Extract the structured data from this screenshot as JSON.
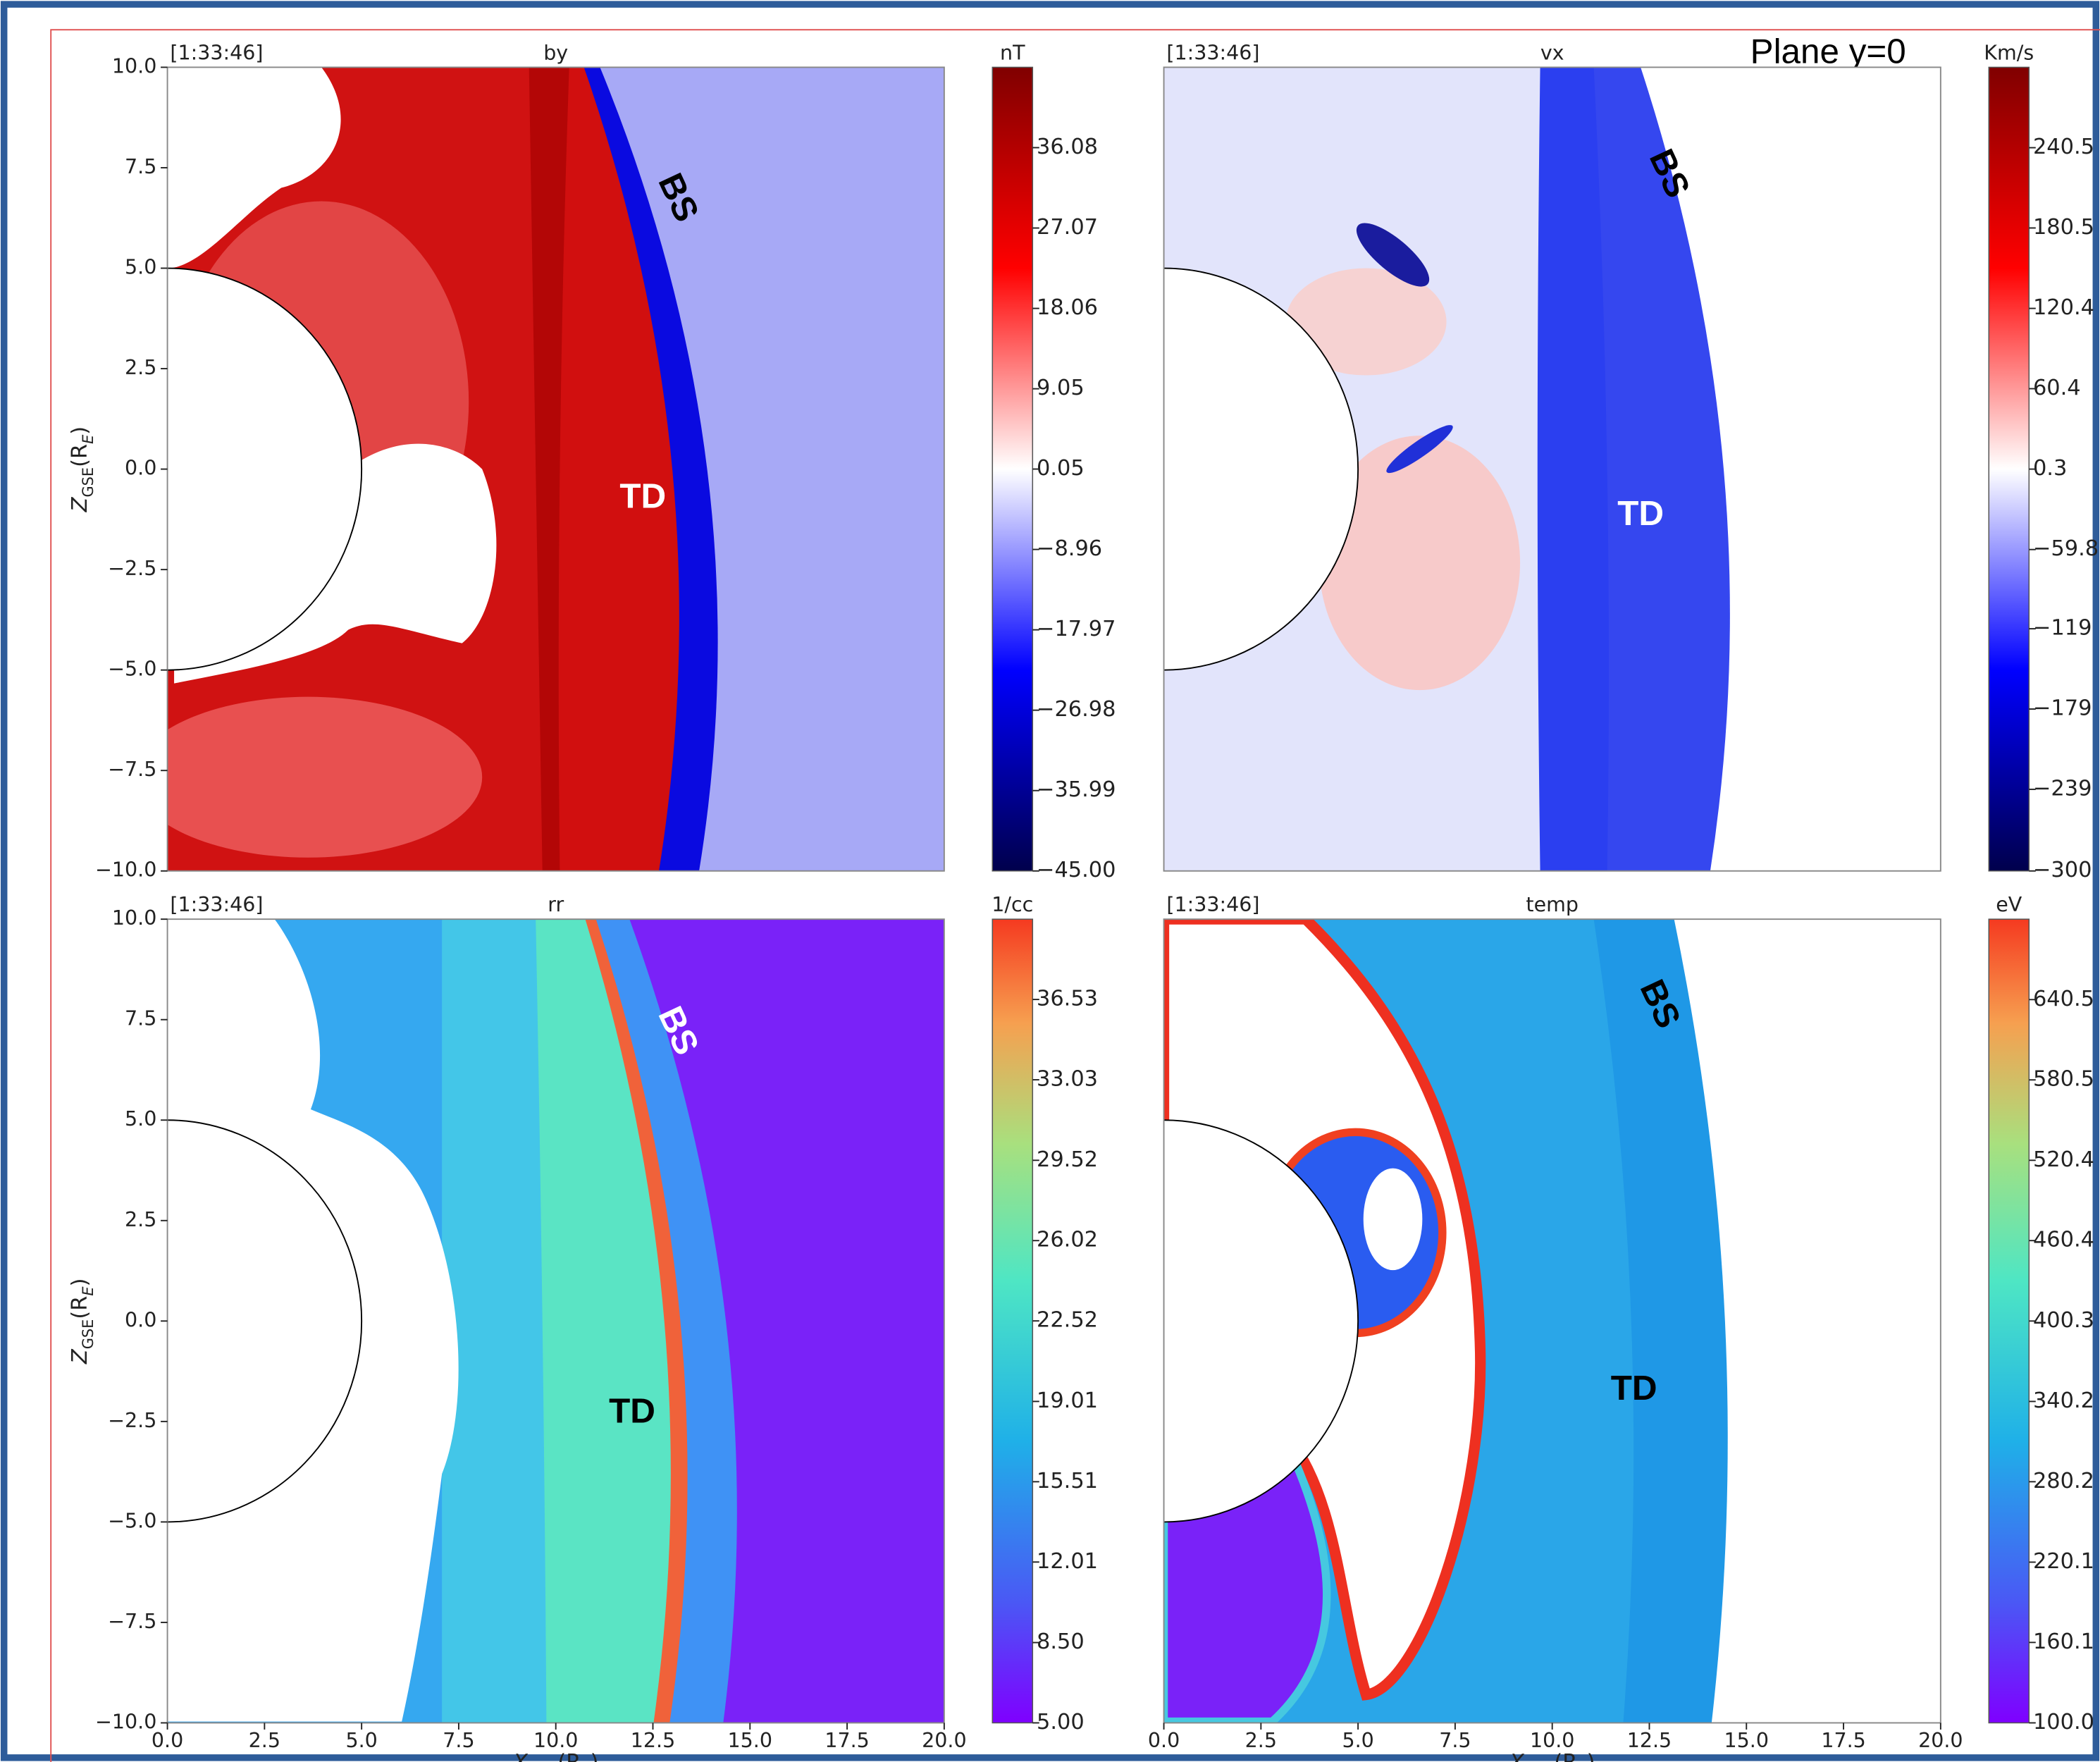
{
  "plane_label": "Plane y=0",
  "chart_data": [
    {
      "type": "heatmap",
      "title": "by",
      "timestamp": "[1:33:46]",
      "xlim": [
        0,
        20
      ],
      "ylim": [
        -10,
        10
      ],
      "yticks": [
        {
          "value": -10,
          "label": "−10.0"
        },
        {
          "value": -7.5,
          "label": "−7.5"
        },
        {
          "value": -5,
          "label": "−5.0"
        },
        {
          "value": -2.5,
          "label": "−2.5"
        },
        {
          "value": 0,
          "label": "0.0"
        },
        2.5,
        {
          "value": 5,
          "label": "5.0"
        },
        7.5,
        {
          "value": 10,
          "label": "10.0"
        }
      ],
      "y_label": [
        "Z",
        "GSE",
        "(R",
        "E",
        ")"
      ],
      "colormap": "seismic",
      "colorbar": {
        "unit": "nT",
        "clim": [
          -45,
          45.09
        ],
        "ticks": [
          {
            "value": -45,
            "label": "−45.00"
          },
          {
            "value": -35.99,
            "label": "−35.99"
          },
          {
            "value": -26.98,
            "label": "−26.98"
          },
          {
            "value": -17.97,
            "label": "−17.97"
          },
          {
            "value": -8.96,
            "label": "−8.96"
          },
          0.05,
          9.05,
          18.06,
          27.07,
          36.08
        ]
      },
      "annotations": [
        "BS",
        "TD"
      ]
    },
    {
      "type": "heatmap",
      "title": "vx",
      "timestamp": "[1:33:46]",
      "xlim": [
        0,
        20
      ],
      "ylim": [
        -10,
        10
      ],
      "colormap": "seismic",
      "colorbar": {
        "unit": "Km/s",
        "clim": [
          -300,
          300.6
        ],
        "ticks": [
          {
            "value": -300,
            "label": "−300"
          },
          {
            "value": -239,
            "label": "−239"
          },
          {
            "value": -179,
            "label": "−179"
          },
          {
            "value": -119,
            "label": "−119"
          },
          {
            "value": -59.8,
            "label": "−59.8"
          },
          0.3,
          60.4,
          120.4,
          180.5,
          240.5
        ]
      },
      "annotations": [
        "BS",
        "TD"
      ]
    },
    {
      "type": "heatmap",
      "title": "rr",
      "timestamp": "[1:33:46]",
      "xlim": [
        0,
        20
      ],
      "ylim": [
        -10,
        10
      ],
      "xticks": [
        {
          "value": 0,
          "label": "0.0"
        },
        2.5,
        {
          "value": 5,
          "label": "5.0"
        },
        7.5,
        {
          "value": 10,
          "label": "10.0"
        },
        12.5,
        {
          "value": 15,
          "label": "15.0"
        },
        17.5,
        {
          "value": 20,
          "label": "20.0"
        }
      ],
      "yticks": [
        {
          "value": -10,
          "label": "−10.0"
        },
        {
          "value": -7.5,
          "label": "−7.5"
        },
        {
          "value": -5,
          "label": "−5.0"
        },
        {
          "value": -2.5,
          "label": "−2.5"
        },
        {
          "value": 0,
          "label": "0.0"
        },
        2.5,
        {
          "value": 5,
          "label": "5.0"
        },
        7.5,
        {
          "value": 10,
          "label": "10.0"
        }
      ],
      "x_label": [
        "X",
        "GSE",
        "(R",
        "E",
        ")"
      ],
      "y_label": [
        "Z",
        "GSE",
        "(R",
        "E",
        ")"
      ],
      "colormap": "rainbow",
      "colorbar": {
        "unit": "1/cc",
        "clim": [
          5,
          40.03
        ],
        "ticks": [
          {
            "value": 5,
            "label": "5.00"
          },
          {
            "value": 8.5,
            "label": "8.50"
          },
          12.01,
          15.51,
          19.01,
          22.52,
          26.02,
          29.52,
          33.03,
          36.53
        ]
      },
      "annotations": [
        "BS",
        "TD"
      ]
    },
    {
      "type": "heatmap",
      "title": "temp",
      "timestamp": "[1:33:46]",
      "xlim": [
        0,
        20
      ],
      "ylim": [
        -10,
        10
      ],
      "xticks": [
        {
          "value": 0,
          "label": "0.0"
        },
        2.5,
        {
          "value": 5,
          "label": "5.0"
        },
        7.5,
        {
          "value": 10,
          "label": "10.0"
        },
        12.5,
        {
          "value": 15,
          "label": "15.0"
        },
        17.5,
        {
          "value": 20,
          "label": "20.0"
        }
      ],
      "x_label": [
        "X",
        "GSE",
        "(R",
        "E",
        ")"
      ],
      "colormap": "rainbow",
      "colorbar": {
        "unit": "eV",
        "clim": [
          100,
          700.6
        ],
        "ticks": [
          {
            "value": 100,
            "label": "100.0"
          },
          160.1,
          220.1,
          280.2,
          340.2,
          400.3,
          460.4,
          520.4,
          580.5,
          640.5
        ]
      },
      "annotations": [
        "BS",
        "TD"
      ]
    }
  ]
}
